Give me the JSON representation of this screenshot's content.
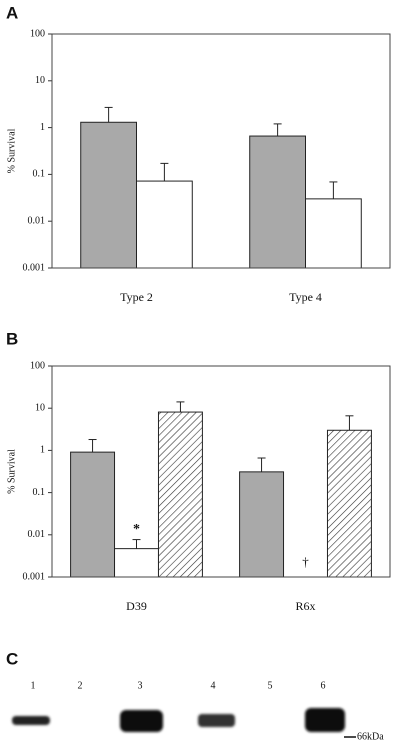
{
  "chart_data": [
    {
      "type": "bar",
      "panel_label": "A",
      "ylabel": "% Survival",
      "log_scale": true,
      "categories": [
        "Type 2",
        "Type 4"
      ],
      "series": [
        {
          "color": "#a9a9a9",
          "values": [
            1.3,
            0.66
          ],
          "errors": [
            1.4,
            0.54
          ]
        },
        {
          "color": "#ffffff",
          "values": [
            0.072,
            0.03
          ],
          "errors": [
            0.1,
            0.039
          ]
        }
      ],
      "ylim": [
        0.001,
        100
      ],
      "yticks": [
        0.001,
        0.01,
        0.1,
        1,
        10,
        100
      ]
    },
    {
      "type": "bar",
      "panel_label": "B",
      "ylabel": "% Survival",
      "log_scale": true,
      "categories": [
        "D39",
        "R6x"
      ],
      "series": [
        {
          "color": "#a9a9a9",
          "values": [
            0.91,
            0.31
          ],
          "errors": [
            0.9,
            0.35
          ]
        },
        {
          "color": "#ffffff",
          "values": [
            0.0047,
            null
          ],
          "errors": [
            0.003,
            null
          ],
          "notes": [
            "*",
            "†"
          ]
        },
        {
          "color": "#ffffff",
          "fill": "hatch",
          "values": [
            8.1,
            3.0
          ],
          "errors": [
            6,
            3.6
          ]
        }
      ],
      "ylim": [
        0.001,
        100
      ],
      "yticks": [
        0.001,
        0.01,
        0.1,
        1,
        10,
        100
      ]
    }
  ],
  "blot": {
    "panel_label": "C",
    "lanes": [
      "1",
      "2",
      "3",
      "4",
      "5",
      "6"
    ],
    "marker": "66kDa"
  }
}
